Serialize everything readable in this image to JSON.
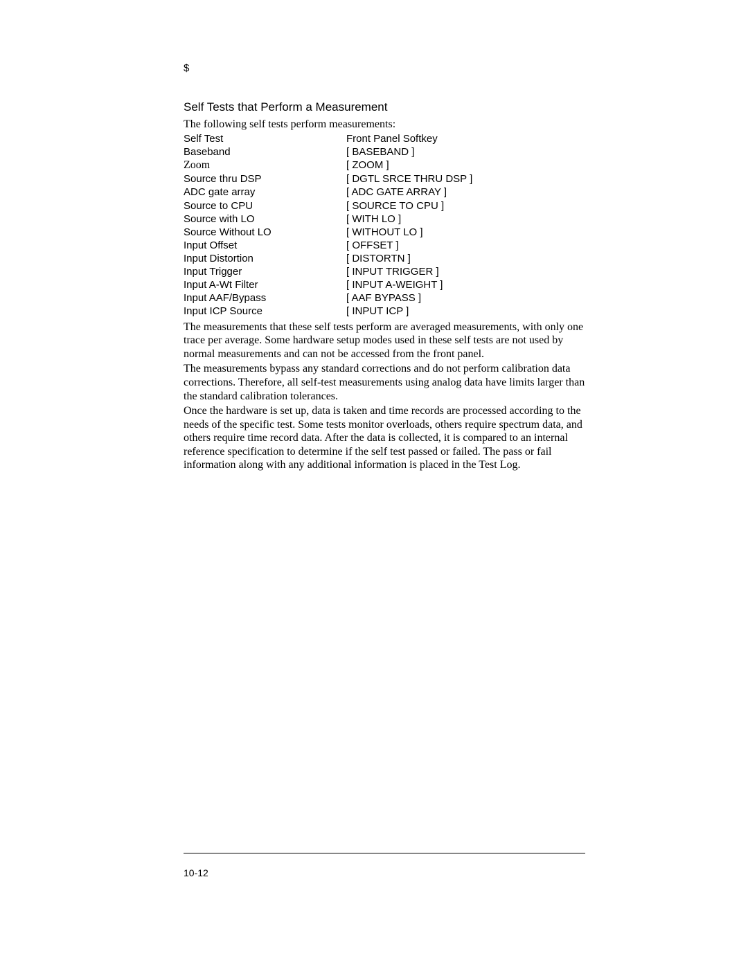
{
  "marker": "$",
  "heading": "Self Tests that Perform a Measurement",
  "intro": "The following self tests perform measurements:",
  "table": {
    "header": {
      "col1": "Self Test",
      "col2": "Front Panel Softkey"
    },
    "rows": [
      {
        "col1": "Baseband",
        "col2": "[ BASEBAND ]",
        "serif": false
      },
      {
        "col1": "Zoom",
        "col2": "[ ZOOM ]",
        "serif": true
      },
      {
        "col1": "Source thru DSP",
        "col2": "[ DGTL SRCE THRU DSP ]",
        "serif": false
      },
      {
        "col1": "ADC gate array",
        "col2": "[ ADC GATE ARRAY ]",
        "serif": false
      },
      {
        "col1": "Source to CPU",
        "col2": "[ SOURCE TO CPU ]",
        "serif": false
      },
      {
        "col1": "Source with LO",
        "col2": "[ WITH LO ]",
        "serif": false
      },
      {
        "col1": "Source Without LO",
        "col2": "[ WITHOUT LO ]",
        "serif": false
      },
      {
        "col1": "Input Offset",
        "col2": "[ OFFSET ]",
        "serif": false
      },
      {
        "col1": "Input Distortion",
        "col2": "[ DISTORTN ]",
        "serif": false
      },
      {
        "col1": "Input Trigger",
        "col2": "[ INPUT TRIGGER ]",
        "serif": false
      },
      {
        "col1": "Input A-Wt Filter",
        "col2": "[ INPUT A-WEIGHT ]",
        "serif": false
      },
      {
        "col1": "Input AAF/Bypass",
        "col2": "[ AAF BYPASS ]",
        "serif": false
      },
      {
        "col1": "Input ICP Source",
        "col2": "[ INPUT ICP ]",
        "serif": false
      }
    ]
  },
  "paragraphs": [
    "The measurements that these self tests perform are averaged measurements, with only one trace per average.  Some hardware setup modes used in these self tests are not used by normal measurements and can not be accessed from the front panel.",
    "The measurements bypass any standard corrections and do not perform calibration data corrections.  Therefore, all self-test measurements using analog data have limits larger than the standard calibration tolerances.",
    "Once the hardware is set up, data is taken and time records are processed according to the needs of the specific test.  Some tests monitor overloads, others require spectrum data, and others require time record data.  After the data is collected, it is compared to an internal reference specification to determine if the self test passed or failed.  The pass or fail information along with any additional information is placed in the Test Log."
  ],
  "page_number": "10-12"
}
